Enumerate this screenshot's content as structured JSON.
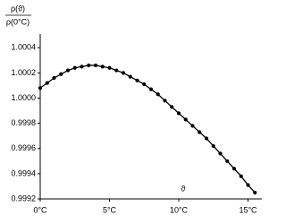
{
  "chart_data": {
    "type": "line",
    "y_label_numerator": "ρ(ϑ)",
    "y_label_denominator": "ρ(0°C)",
    "x_label": "ϑ",
    "x": [
      0,
      0.5,
      1,
      1.5,
      2,
      2.5,
      3,
      3.5,
      4,
      4.5,
      5,
      5.5,
      6,
      6.5,
      7,
      7.5,
      8,
      8.5,
      9,
      9.5,
      10,
      10.5,
      11,
      11.5,
      12,
      12.5,
      13,
      13.5,
      14,
      14.5,
      15,
      15.5
    ],
    "values": [
      1.00008,
      1.00012,
      1.00016,
      1.00019,
      1.00022,
      1.00024,
      1.00025,
      1.00026,
      1.00026,
      1.00025,
      1.00024,
      1.00022,
      1.0002,
      1.00017,
      1.00014,
      1.00011,
      1.00007,
      1.00003,
      0.99998,
      0.99993,
      0.99988,
      0.99983,
      0.99978,
      0.99973,
      0.99968,
      0.99962,
      0.99956,
      0.9995,
      0.99944,
      0.99938,
      0.99931,
      0.99925
    ],
    "color": "#000000",
    "xlim": [
      0,
      16
    ],
    "xticks": [
      {
        "value": 0,
        "label": "0°C"
      },
      {
        "value": 5,
        "label": "5°C"
      },
      {
        "value": 10,
        "label": "10°C"
      },
      {
        "value": 15,
        "label": "15°C"
      }
    ],
    "ylim": [
      0.9992,
      1.00048
    ],
    "yticks": [
      0.9992,
      0.9994,
      0.9996,
      0.9998,
      {
        "value": 1.0,
        "label": "1.0000"
      },
      1.0002,
      1.0004
    ],
    "grid": false,
    "markers": true
  }
}
